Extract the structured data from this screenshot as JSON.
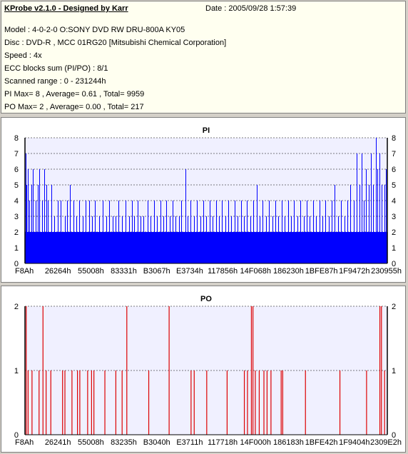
{
  "header": {
    "title": "KProbe v2.1.0 - Designed by Karr",
    "date": "Date : 2005/09/28 1:57:39",
    "lines": [
      "Model : 4-0-2-0 O:SONY    DVD RW DRU-800A  KY05",
      "Disc : DVD-R , MCC 01RG20  [Mitsubishi Chemical Corporation]",
      "Speed : 4x",
      "ECC blocks sum (PI/PO) : 8/1",
      "Scanned range : 0 - 231244h",
      "PI Max= 8 , Average= 0.61 , Total= 9959",
      "PO Max= 2 , Average= 0.00 , Total= 217"
    ]
  },
  "colors": {
    "pi_bar": "#0000ff",
    "po_bar": "#dd0000",
    "plot_bg": "#f0f0ff",
    "header_bg": "#fffff0"
  },
  "chart_data": [
    {
      "type": "bar",
      "title": "PI",
      "ylim": [
        0,
        8
      ],
      "yticks": [
        0,
        1,
        2,
        3,
        4,
        5,
        6,
        7,
        8
      ],
      "xlim": [
        0,
        231244
      ],
      "xtick_labels": [
        "F8Ah",
        "26264h",
        "55008h",
        "83331h",
        "B3067h",
        "E3734h",
        "117856h",
        "14F068h",
        "186230h",
        "1BFE87h",
        "1F9472h",
        "230955h"
      ],
      "grid": true,
      "description_of_series": "PI errors per ECC block along scanned range",
      "baseline": 2,
      "spikes": [
        {
          "x": 500,
          "v": 7
        },
        {
          "x": 1200,
          "v": 5
        },
        {
          "x": 2000,
          "v": 6
        },
        {
          "x": 3000,
          "v": 4
        },
        {
          "x": 4200,
          "v": 5
        },
        {
          "x": 5400,
          "v": 6
        },
        {
          "x": 7000,
          "v": 4
        },
        {
          "x": 8500,
          "v": 5
        },
        {
          "x": 9500,
          "v": 6
        },
        {
          "x": 11000,
          "v": 4
        },
        {
          "x": 12500,
          "v": 6
        },
        {
          "x": 14000,
          "v": 5
        },
        {
          "x": 15000,
          "v": 4
        },
        {
          "x": 17000,
          "v": 5
        },
        {
          "x": 19000,
          "v": 3
        },
        {
          "x": 21000,
          "v": 4
        },
        {
          "x": 23000,
          "v": 4
        },
        {
          "x": 25500,
          "v": 3
        },
        {
          "x": 27000,
          "v": 4
        },
        {
          "x": 29000,
          "v": 5
        },
        {
          "x": 31000,
          "v": 4
        },
        {
          "x": 33000,
          "v": 3
        },
        {
          "x": 35000,
          "v": 4
        },
        {
          "x": 37000,
          "v": 3
        },
        {
          "x": 39000,
          "v": 4
        },
        {
          "x": 41000,
          "v": 4
        },
        {
          "x": 43000,
          "v": 3
        },
        {
          "x": 45000,
          "v": 4
        },
        {
          "x": 47500,
          "v": 3
        },
        {
          "x": 50000,
          "v": 4
        },
        {
          "x": 52000,
          "v": 3
        },
        {
          "x": 54000,
          "v": 4
        },
        {
          "x": 56000,
          "v": 3
        },
        {
          "x": 58000,
          "v": 3
        },
        {
          "x": 60000,
          "v": 4
        },
        {
          "x": 62000,
          "v": 3
        },
        {
          "x": 64500,
          "v": 4
        },
        {
          "x": 66500,
          "v": 3
        },
        {
          "x": 68500,
          "v": 4
        },
        {
          "x": 70000,
          "v": 3
        },
        {
          "x": 72000,
          "v": 4
        },
        {
          "x": 74000,
          "v": 3
        },
        {
          "x": 76000,
          "v": 3
        },
        {
          "x": 78500,
          "v": 4
        },
        {
          "x": 80500,
          "v": 3
        },
        {
          "x": 82500,
          "v": 4
        },
        {
          "x": 84500,
          "v": 3
        },
        {
          "x": 86500,
          "v": 4
        },
        {
          "x": 88500,
          "v": 3
        },
        {
          "x": 90500,
          "v": 4
        },
        {
          "x": 92500,
          "v": 3
        },
        {
          "x": 94500,
          "v": 4
        },
        {
          "x": 96500,
          "v": 3
        },
        {
          "x": 98500,
          "v": 3
        },
        {
          "x": 100000,
          "v": 4
        },
        {
          "x": 102500,
          "v": 6
        },
        {
          "x": 104000,
          "v": 3
        },
        {
          "x": 106000,
          "v": 4
        },
        {
          "x": 108000,
          "v": 3
        },
        {
          "x": 110000,
          "v": 4
        },
        {
          "x": 112000,
          "v": 3
        },
        {
          "x": 114000,
          "v": 4
        },
        {
          "x": 116000,
          "v": 3
        },
        {
          "x": 118000,
          "v": 4
        },
        {
          "x": 120000,
          "v": 3
        },
        {
          "x": 122000,
          "v": 4
        },
        {
          "x": 124000,
          "v": 3
        },
        {
          "x": 126000,
          "v": 4
        },
        {
          "x": 128000,
          "v": 3
        },
        {
          "x": 130000,
          "v": 4
        },
        {
          "x": 132000,
          "v": 3
        },
        {
          "x": 134000,
          "v": 4
        },
        {
          "x": 136000,
          "v": 3
        },
        {
          "x": 138000,
          "v": 4
        },
        {
          "x": 140000,
          "v": 3
        },
        {
          "x": 142000,
          "v": 4
        },
        {
          "x": 144000,
          "v": 3
        },
        {
          "x": 146000,
          "v": 4
        },
        {
          "x": 148000,
          "v": 5
        },
        {
          "x": 150000,
          "v": 3
        },
        {
          "x": 152000,
          "v": 4
        },
        {
          "x": 154000,
          "v": 3
        },
        {
          "x": 156000,
          "v": 4
        },
        {
          "x": 158000,
          "v": 3
        },
        {
          "x": 160000,
          "v": 4
        },
        {
          "x": 162000,
          "v": 3
        },
        {
          "x": 164000,
          "v": 4
        },
        {
          "x": 166000,
          "v": 3
        },
        {
          "x": 168000,
          "v": 4
        },
        {
          "x": 170000,
          "v": 3
        },
        {
          "x": 172000,
          "v": 4
        },
        {
          "x": 174000,
          "v": 3
        },
        {
          "x": 176000,
          "v": 4
        },
        {
          "x": 178000,
          "v": 3
        },
        {
          "x": 180000,
          "v": 4
        },
        {
          "x": 182000,
          "v": 3
        },
        {
          "x": 184000,
          "v": 4
        },
        {
          "x": 186000,
          "v": 3
        },
        {
          "x": 188000,
          "v": 4
        },
        {
          "x": 190000,
          "v": 3
        },
        {
          "x": 192000,
          "v": 4
        },
        {
          "x": 194000,
          "v": 3
        },
        {
          "x": 196000,
          "v": 4
        },
        {
          "x": 198000,
          "v": 5
        },
        {
          "x": 200000,
          "v": 3
        },
        {
          "x": 202000,
          "v": 4
        },
        {
          "x": 204000,
          "v": 3
        },
        {
          "x": 206000,
          "v": 4
        },
        {
          "x": 208000,
          "v": 5
        },
        {
          "x": 210000,
          "v": 4
        },
        {
          "x": 212000,
          "v": 7
        },
        {
          "x": 213500,
          "v": 5
        },
        {
          "x": 215000,
          "v": 7
        },
        {
          "x": 216500,
          "v": 4
        },
        {
          "x": 218000,
          "v": 6
        },
        {
          "x": 219500,
          "v": 5
        },
        {
          "x": 221000,
          "v": 7
        },
        {
          "x": 222500,
          "v": 5
        },
        {
          "x": 224000,
          "v": 8
        },
        {
          "x": 225000,
          "v": 6
        },
        {
          "x": 226500,
          "v": 7
        },
        {
          "x": 228000,
          "v": 5
        },
        {
          "x": 229500,
          "v": 5
        },
        {
          "x": 230500,
          "v": 6
        }
      ]
    },
    {
      "type": "bar",
      "title": "PO",
      "ylim": [
        0,
        2
      ],
      "yticks": [
        0,
        1,
        2
      ],
      "xlim": [
        0,
        231244
      ],
      "xtick_labels": [
        "F8Ah",
        "26241h",
        "55008h",
        "83235h",
        "B3040h",
        "E3711h",
        "117718h",
        "14F000h",
        "186183h",
        "1BFE42h",
        "1F9404h",
        "2309E2h"
      ],
      "grid": true,
      "spikes": [
        {
          "x": 800,
          "v": 2
        },
        {
          "x": 2000,
          "v": 1
        },
        {
          "x": 4500,
          "v": 1
        },
        {
          "x": 9000,
          "v": 1
        },
        {
          "x": 11500,
          "v": 2
        },
        {
          "x": 13500,
          "v": 1
        },
        {
          "x": 16500,
          "v": 1
        },
        {
          "x": 24000,
          "v": 1
        },
        {
          "x": 25500,
          "v": 1
        },
        {
          "x": 30000,
          "v": 1
        },
        {
          "x": 33500,
          "v": 1
        },
        {
          "x": 35000,
          "v": 1
        },
        {
          "x": 40000,
          "v": 1
        },
        {
          "x": 42500,
          "v": 1
        },
        {
          "x": 44000,
          "v": 1
        },
        {
          "x": 51000,
          "v": 1
        },
        {
          "x": 58000,
          "v": 1
        },
        {
          "x": 62000,
          "v": 1
        },
        {
          "x": 65000,
          "v": 2
        },
        {
          "x": 79000,
          "v": 1
        },
        {
          "x": 92000,
          "v": 2
        },
        {
          "x": 106000,
          "v": 1
        },
        {
          "x": 108000,
          "v": 1
        },
        {
          "x": 116000,
          "v": 1
        },
        {
          "x": 129000,
          "v": 1
        },
        {
          "x": 140000,
          "v": 1
        },
        {
          "x": 142000,
          "v": 1
        },
        {
          "x": 144500,
          "v": 2
        },
        {
          "x": 145500,
          "v": 2
        },
        {
          "x": 147000,
          "v": 1
        },
        {
          "x": 149500,
          "v": 1
        },
        {
          "x": 152500,
          "v": 1
        },
        {
          "x": 154500,
          "v": 1
        },
        {
          "x": 157000,
          "v": 1
        },
        {
          "x": 163500,
          "v": 1
        },
        {
          "x": 164500,
          "v": 1
        },
        {
          "x": 179000,
          "v": 1
        },
        {
          "x": 201000,
          "v": 1
        },
        {
          "x": 218000,
          "v": 1
        },
        {
          "x": 226500,
          "v": 2
        },
        {
          "x": 227500,
          "v": 2
        },
        {
          "x": 229500,
          "v": 1
        }
      ]
    }
  ]
}
